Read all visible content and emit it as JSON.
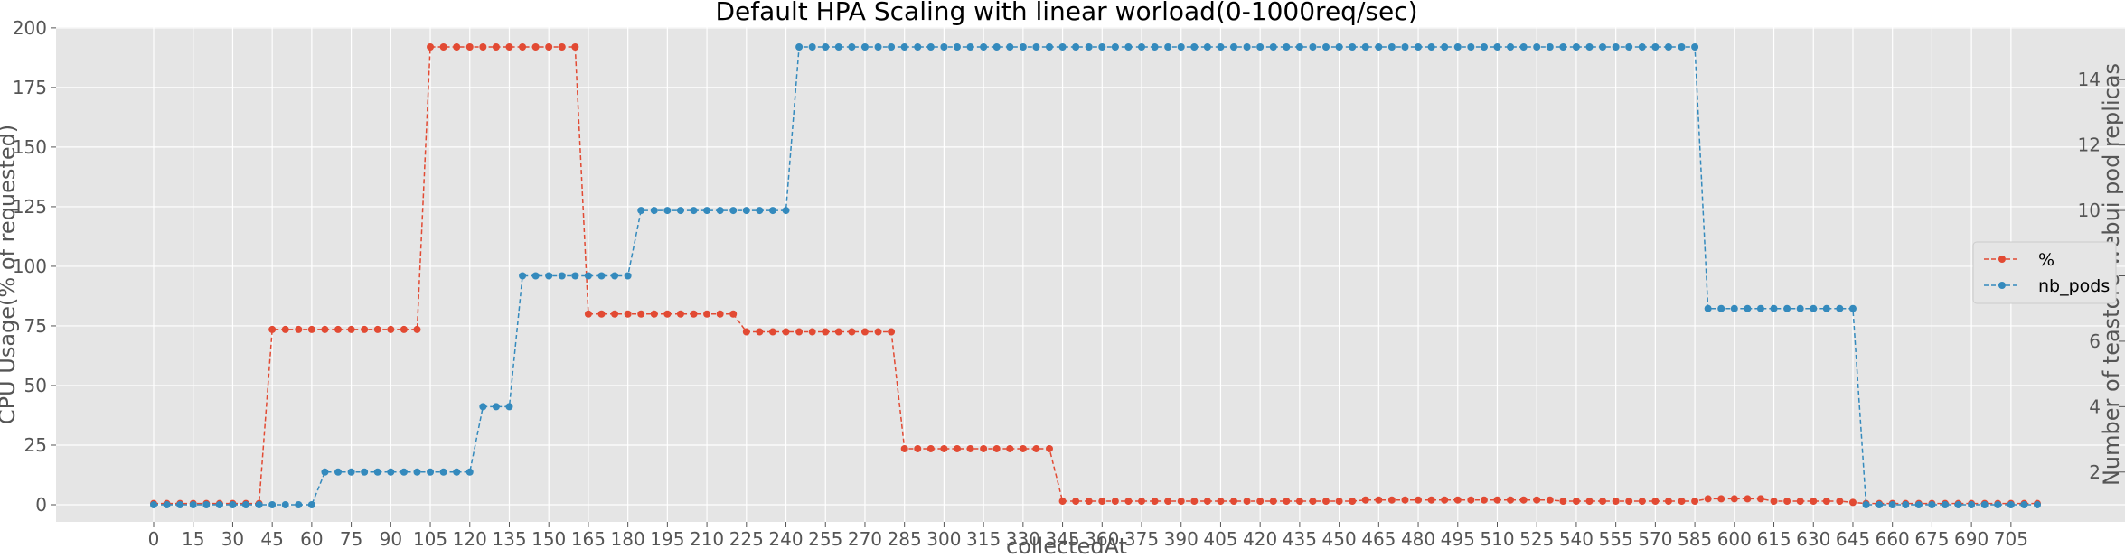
{
  "chart_data": {
    "type": "line",
    "title": "Default HPA Scaling with linear worload(0-1000req/sec)",
    "xlabel": "collectedAt",
    "ylabel": "CPU Usage(% of requested)",
    "y2label": "Number of teastore-webui pod replicas",
    "x_interval": 5,
    "xlim": [
      -10,
      720
    ],
    "ylim": [
      -10,
      200
    ],
    "y2lim": [
      0.4,
      15.4
    ],
    "x_ticks": [
      0,
      15,
      30,
      45,
      60,
      75,
      90,
      105,
      120,
      135,
      150,
      165,
      180,
      195,
      210,
      225,
      240,
      255,
      270,
      285,
      300,
      315,
      330,
      345,
      360,
      375,
      390,
      405,
      420,
      435,
      450,
      465,
      480,
      495,
      510,
      525,
      540,
      555,
      570,
      585,
      600,
      615,
      630,
      645,
      660,
      675,
      690,
      705
    ],
    "y_ticks": [
      0,
      25,
      50,
      75,
      100,
      125,
      150,
      175,
      200
    ],
    "y2_ticks": [
      2,
      4,
      6,
      8,
      10,
      12,
      14
    ],
    "grid": true,
    "legend_position": "right",
    "series": [
      {
        "name": "%",
        "axis": "left",
        "color": "#E24A33",
        "segments": [
          {
            "from": 0,
            "to": 40,
            "value": 0.5
          },
          {
            "from": 45,
            "to": 100,
            "value": 73.5
          },
          {
            "from": 105,
            "to": 160,
            "value": 192
          },
          {
            "from": 165,
            "to": 220,
            "value": 80
          },
          {
            "from": 225,
            "to": 280,
            "value": 72.5
          },
          {
            "from": 285,
            "to": 340,
            "value": 23.5
          },
          {
            "from": 345,
            "to": 455,
            "value": 1.5
          },
          {
            "from": 460,
            "to": 530,
            "value": 2
          },
          {
            "from": 535,
            "to": 585,
            "value": 1.5
          },
          {
            "from": 590,
            "to": 610,
            "value": 2.5
          },
          {
            "from": 615,
            "to": 640,
            "value": 1.5
          },
          {
            "from": 645,
            "to": 645,
            "value": 1
          },
          {
            "from": 650,
            "to": 715,
            "value": 0.5
          }
        ]
      },
      {
        "name": "nb_pods",
        "axis": "right",
        "color": "#348ABD",
        "segments": [
          {
            "from": 0,
            "to": 60,
            "value": 1
          },
          {
            "from": 65,
            "to": 120,
            "value": 2
          },
          {
            "from": 125,
            "to": 135,
            "value": 4
          },
          {
            "from": 140,
            "to": 180,
            "value": 8
          },
          {
            "from": 185,
            "to": 240,
            "value": 10
          },
          {
            "from": 245,
            "to": 585,
            "value": 15
          },
          {
            "from": 590,
            "to": 645,
            "value": 7
          },
          {
            "from": 650,
            "to": 715,
            "value": 1
          }
        ]
      }
    ]
  }
}
